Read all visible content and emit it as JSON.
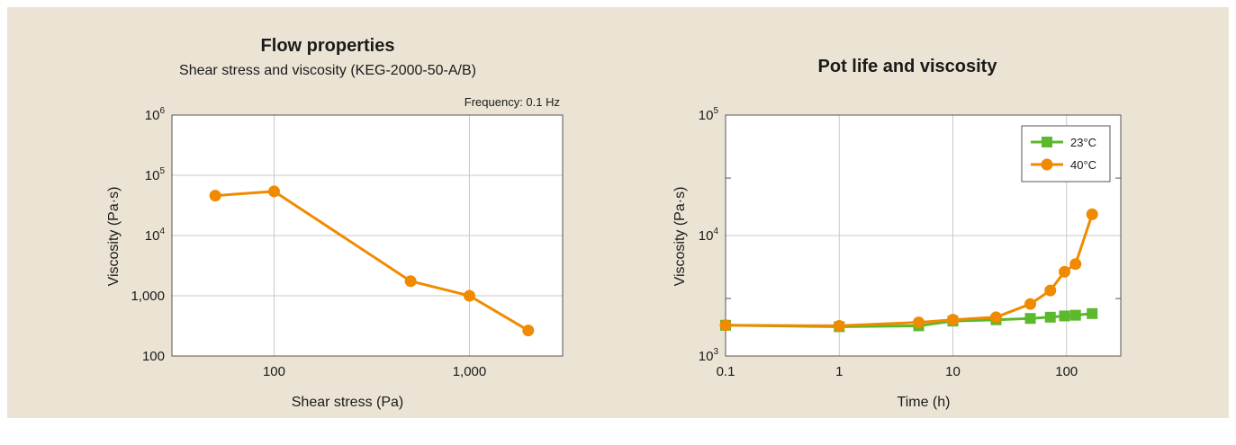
{
  "colors": {
    "background": "#ebe4d4",
    "orange": "#f08a00",
    "green": "#5cb82c",
    "grid": "#c8c8c8"
  },
  "chart_data": [
    {
      "type": "line",
      "title": "Flow properties",
      "subtitle": "Shear stress and viscosity (KEG-2000-50-A/B)",
      "annotation": "Frequency: 0.1 Hz",
      "xlabel": "Shear stress (Pa)",
      "ylabel": "Viscosity (Pa·s)",
      "xscale": "log",
      "yscale": "log",
      "xlim": [
        30,
        3000
      ],
      "ylim": [
        100,
        1000000
      ],
      "x_ticks": [
        {
          "value": 100,
          "label": "100"
        },
        {
          "value": 1000,
          "label": "1,000"
        }
      ],
      "y_ticks": [
        {
          "value": 100,
          "base": "100",
          "exp": ""
        },
        {
          "value": 1000,
          "base": "1,000",
          "exp": ""
        },
        {
          "value": 10000,
          "base": "10",
          "exp": "4"
        },
        {
          "value": 100000,
          "base": "10",
          "exp": "5"
        },
        {
          "value": 1000000,
          "base": "10",
          "exp": "6"
        }
      ],
      "grid": true,
      "series": [
        {
          "color": "#f08a00",
          "marker": "circle",
          "x": [
            50,
            100,
            500,
            1000,
            2000
          ],
          "y": [
            46000,
            54000,
            1750,
            1000,
            265
          ]
        }
      ]
    },
    {
      "type": "line",
      "title": "Pot life and viscosity",
      "xlabel": "Time (h)",
      "ylabel": "Viscosity (Pa·s)",
      "xscale": "log",
      "yscale": "log",
      "xlim": [
        0.1,
        300
      ],
      "ylim": [
        1000,
        100000
      ],
      "x_ticks": [
        {
          "value": 0.1,
          "label": "0.1"
        },
        {
          "value": 1,
          "label": "1"
        },
        {
          "value": 10,
          "label": "10"
        },
        {
          "value": 100,
          "label": "100"
        }
      ],
      "y_ticks": [
        {
          "value": 1000,
          "base": "10",
          "exp": "3"
        },
        {
          "value": 10000,
          "base": "10",
          "exp": "4"
        },
        {
          "value": 100000,
          "base": "10",
          "exp": "5"
        }
      ],
      "grid": true,
      "legend_position": "top-right",
      "series": [
        {
          "name": "23°C",
          "color": "#5cb82c",
          "marker": "square",
          "x": [
            0.1,
            1,
            5,
            10,
            24,
            48,
            72,
            96,
            120,
            168
          ],
          "y": [
            1800,
            1750,
            1780,
            1950,
            2000,
            2050,
            2100,
            2150,
            2180,
            2250
          ]
        },
        {
          "name": "40°C",
          "color": "#f08a00",
          "marker": "circle",
          "x": [
            0.1,
            1,
            5,
            10,
            24,
            48,
            72,
            96,
            120,
            168
          ],
          "y": [
            1800,
            1780,
            1900,
            2000,
            2100,
            2700,
            3500,
            5000,
            5800,
            15000
          ]
        }
      ]
    }
  ]
}
